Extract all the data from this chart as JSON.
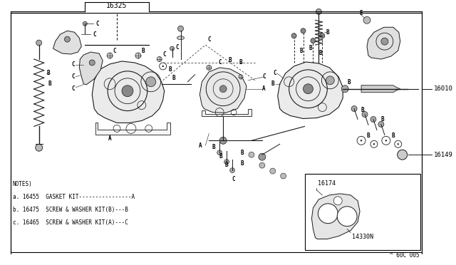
{
  "bg_color": "#ffffff",
  "border_color": "#000000",
  "line_color": "#1a1a1a",
  "text_color": "#000000",
  "fig_width": 6.4,
  "fig_height": 3.72,
  "dpi": 100,
  "notes": [
    "NOTES)",
    "a. 16455  GASKET KIT----------------A",
    "b. 16475  SCREW & WASHER KIT(B)---B",
    "c. 16465  SCREW & WASHER KIT(A)---C"
  ],
  "footer": "^ 60C 005"
}
